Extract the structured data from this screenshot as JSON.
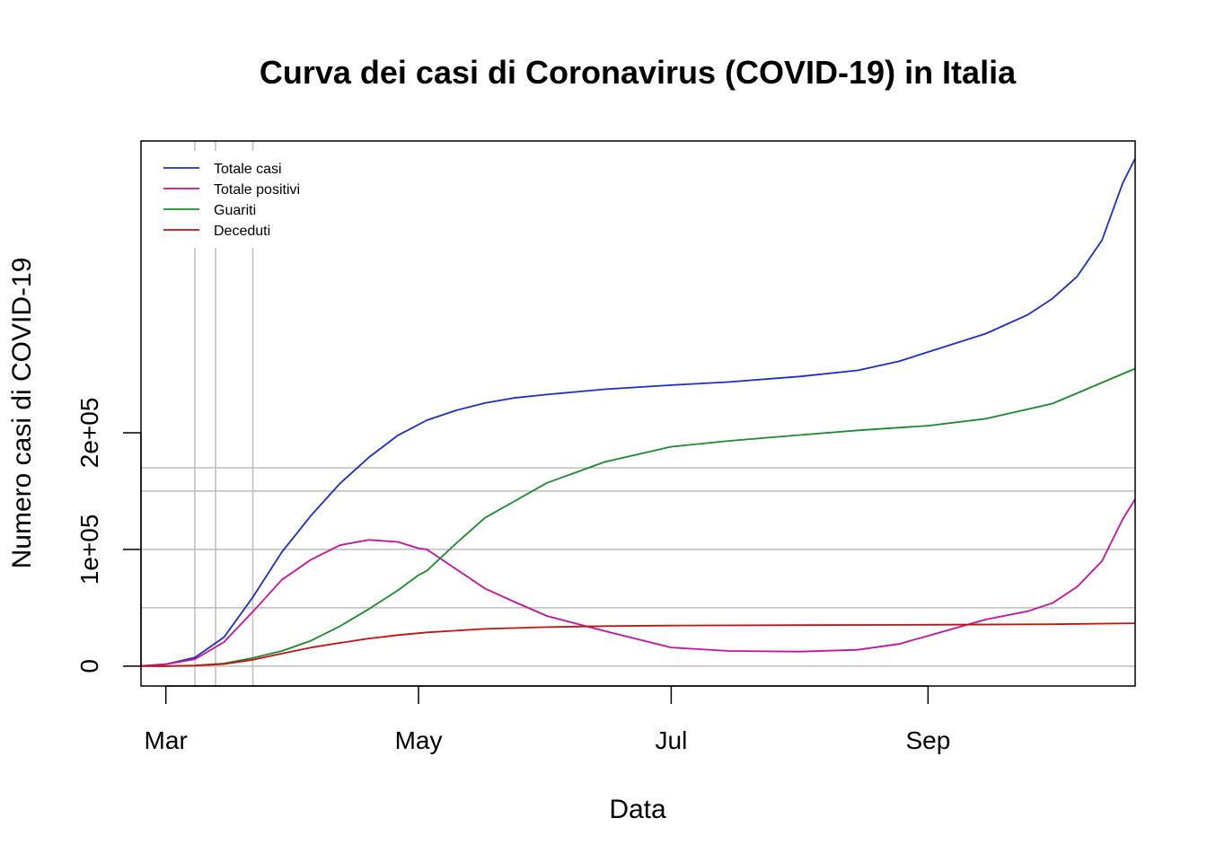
{
  "chart_data": {
    "type": "line",
    "title": "Curva dei casi di Coronavirus (COVID-19) in Italia",
    "xlabel": "Data",
    "ylabel": "Numero casi di COVID-19",
    "x_range": [
      "2020-02-24",
      "2020-10-21"
    ],
    "ylim": [
      -17000,
      450000
    ],
    "y_ticks": [
      0,
      100000,
      200000
    ],
    "y_tick_labels": [
      "0",
      "1e+05",
      "2e+05"
    ],
    "x_ticks": [
      "2020-03-01",
      "2020-05-01",
      "2020-07-01",
      "2020-09-01"
    ],
    "x_tick_labels": [
      "Mar",
      "May",
      "Jul",
      "Sep"
    ],
    "grid": {
      "vertical_lines": [
        "2020-03-08",
        "2020-03-13",
        "2020-03-22"
      ],
      "horizontal_lines": [
        0,
        50000,
        100000,
        150000,
        170000
      ]
    },
    "legend_position": "top-left",
    "series": [
      {
        "name": "Totale casi",
        "color": "#1a2fc8",
        "x": [
          "2020-02-24",
          "2020-03-01",
          "2020-03-08",
          "2020-03-15",
          "2020-03-22",
          "2020-03-29",
          "2020-04-05",
          "2020-04-12",
          "2020-04-19",
          "2020-04-26",
          "2020-05-03",
          "2020-05-10",
          "2020-05-17",
          "2020-05-24",
          "2020-06-01",
          "2020-06-15",
          "2020-07-01",
          "2020-07-15",
          "2020-08-01",
          "2020-08-15",
          "2020-08-25",
          "2020-09-01",
          "2020-09-15",
          "2020-09-25",
          "2020-10-01",
          "2020-10-07",
          "2020-10-13",
          "2020-10-18",
          "2020-10-21"
        ],
        "values": [
          230,
          1700,
          7400,
          24700,
          59100,
          97700,
          128900,
          156400,
          178900,
          197700,
          210700,
          219100,
          225400,
          229800,
          232700,
          237300,
          240800,
          243500,
          248200,
          253400,
          261200,
          269200,
          285000,
          301000,
          314900,
          333900,
          365000,
          414000,
          435000
        ]
      },
      {
        "name": "Totale positivi",
        "color": "#c8109c",
        "x": [
          "2020-02-24",
          "2020-03-01",
          "2020-03-08",
          "2020-03-15",
          "2020-03-22",
          "2020-03-29",
          "2020-04-05",
          "2020-04-12",
          "2020-04-19",
          "2020-04-26",
          "2020-05-01",
          "2020-05-03",
          "2020-05-10",
          "2020-05-17",
          "2020-05-24",
          "2020-06-01",
          "2020-06-15",
          "2020-07-01",
          "2020-07-15",
          "2020-08-01",
          "2020-08-15",
          "2020-08-25",
          "2020-09-01",
          "2020-09-15",
          "2020-09-25",
          "2020-10-01",
          "2020-10-07",
          "2020-10-13",
          "2020-10-18",
          "2020-10-21"
        ],
        "values": [
          220,
          1600,
          6000,
          20600,
          46600,
          73900,
          91200,
          103600,
          108200,
          106500,
          101000,
          100000,
          83300,
          66600,
          55300,
          43000,
          30000,
          16000,
          13000,
          12500,
          14000,
          19000,
          26000,
          40000,
          47000,
          54000,
          68000,
          90000,
          126000,
          143000
        ]
      },
      {
        "name": "Guariti",
        "color": "#1a8c2e",
        "x": [
          "2020-02-24",
          "2020-03-01",
          "2020-03-08",
          "2020-03-15",
          "2020-03-22",
          "2020-03-29",
          "2020-04-05",
          "2020-04-12",
          "2020-04-19",
          "2020-04-26",
          "2020-05-01",
          "2020-05-03",
          "2020-05-10",
          "2020-05-17",
          "2020-05-24",
          "2020-06-01",
          "2020-06-15",
          "2020-07-01",
          "2020-07-15",
          "2020-08-01",
          "2020-08-15",
          "2020-09-01",
          "2020-09-15",
          "2020-10-01",
          "2020-10-21"
        ],
        "values": [
          1,
          80,
          600,
          2300,
          7000,
          13000,
          21800,
          34200,
          48900,
          64900,
          78000,
          81700,
          105000,
          127000,
          141000,
          157000,
          175000,
          188000,
          193000,
          198000,
          202000,
          206000,
          212000,
          225000,
          255000
        ]
      },
      {
        "name": "Deceduti",
        "color": "#c81010",
        "x": [
          "2020-02-24",
          "2020-03-01",
          "2020-03-08",
          "2020-03-15",
          "2020-03-22",
          "2020-03-29",
          "2020-04-05",
          "2020-04-12",
          "2020-04-19",
          "2020-04-26",
          "2020-05-03",
          "2020-05-17",
          "2020-06-01",
          "2020-06-15",
          "2020-07-01",
          "2020-08-01",
          "2020-09-01",
          "2020-10-01",
          "2020-10-21"
        ],
        "values": [
          7,
          34,
          366,
          1800,
          5500,
          10800,
          15900,
          19900,
          23700,
          26600,
          28900,
          31900,
          33500,
          34300,
          34800,
          35200,
          35500,
          35900,
          36800
        ]
      }
    ]
  }
}
